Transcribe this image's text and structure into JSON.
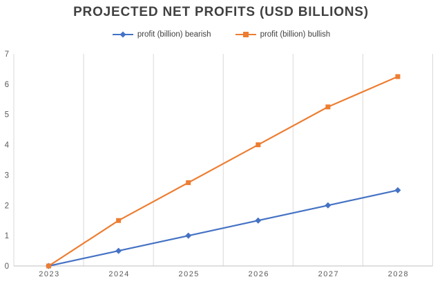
{
  "chart_data": {
    "type": "line",
    "title": "PROJECTED NET PROFITS (USD BILLIONS)",
    "categories": [
      "2023",
      "2024",
      "2025",
      "2026",
      "2027",
      "2028"
    ],
    "series": [
      {
        "name": "profit (billion) bearish",
        "values": [
          0,
          0.5,
          1,
          1.5,
          2,
          2.5
        ],
        "color": "#4472C4",
        "marker": "diamond"
      },
      {
        "name": "profit (billion) bullish",
        "values": [
          0,
          1.5,
          2.75,
          4,
          5.25,
          6.25
        ],
        "color": "#ED7D31",
        "marker": "square"
      }
    ],
    "xlabel": "",
    "ylabel": "",
    "ylim": [
      0,
      7
    ],
    "yticks": [
      0,
      1,
      2,
      3,
      4,
      5,
      6,
      7
    ],
    "grid": "vertical-only",
    "legend_position": "top",
    "gridline_color": "#D9D9D9",
    "axis_color": "#BFBFBF",
    "tick_label_color": "#595959"
  }
}
